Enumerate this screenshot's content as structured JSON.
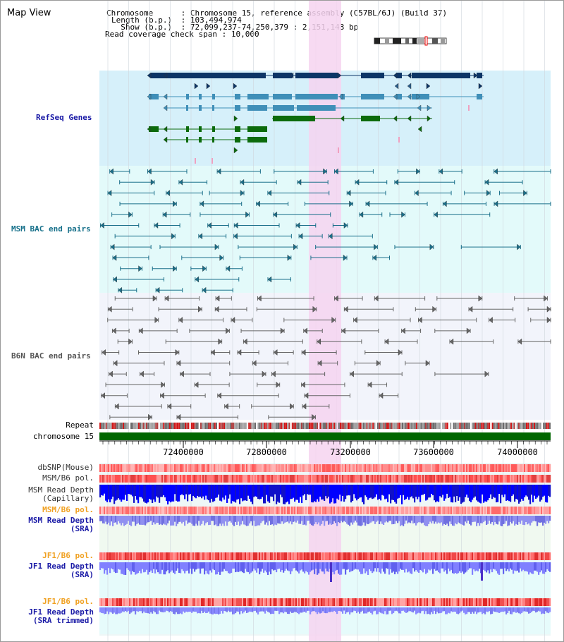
{
  "title": "Map View",
  "info": {
    "chromosome_label": "Chromosome    ",
    "chromosome_value": "Chromosome 15, reference assembly (C57BL/6J) (Build 37)",
    "length_label": "Length (b.p.)",
    "length_value": "103,494,974",
    "show_label": "  Show (b.p.)",
    "show_value": "72,099,237-74,250,379 : 2,151,143 bp",
    "coverage_label": "Read coverage check span",
    "coverage_value": "10,000"
  },
  "tracks": {
    "refseq": "RefSeq Genes",
    "msm_bac": "MSM BAC end pairs",
    "b6n_bac": "B6N BAC end pairs",
    "repeat": "Repeat",
    "chromosome": "chromosome 15",
    "dbsnp": "dbSNP(Mouse)",
    "msm_b6_pol_1": "MSM/B6 pol.",
    "msm_read_depth_cap_1": "MSM Read Depth",
    "msm_read_depth_cap_2": "(Capillary)",
    "msm_b6_pol_2": "MSM/B6 pol.",
    "msm_read_depth_sra_1": "MSM Read Depth",
    "msm_read_depth_sra_2": "(SRA)",
    "jf1_b6_pol_1": "JF1/B6 pol.",
    "jf1_read_depth_sra_1": "JF1 Read Depth",
    "jf1_read_depth_sra_2": "(SRA)",
    "jf1_b6_pol_2": "JF1/B6 pol.",
    "jf1_read_depth_trim_1": "JF1 Read Depth",
    "jf1_read_depth_trim_2": "(SRA trimmed)"
  },
  "axis": {
    "ticks": [
      "72400000",
      "72800000",
      "73200000",
      "73600000",
      "74000000"
    ]
  },
  "colors": {
    "refseq_bg": "#d6f0fa",
    "msm_bg": "#e3fafa",
    "b6n_bg": "#f2f4fb",
    "highlight": "#f6d4f0",
    "gene_dark": "#0c3566",
    "gene_mid": "#3f8fb8",
    "gene_green": "#0c6b0c",
    "msm_line": "#1a6f8a",
    "b6n_line": "#666666",
    "chrom_green": "#006600",
    "label_blue": "#1a1aa6",
    "label_teal": "#16708a",
    "label_gray": "#555555",
    "label_orange": "#f0a020"
  }
}
